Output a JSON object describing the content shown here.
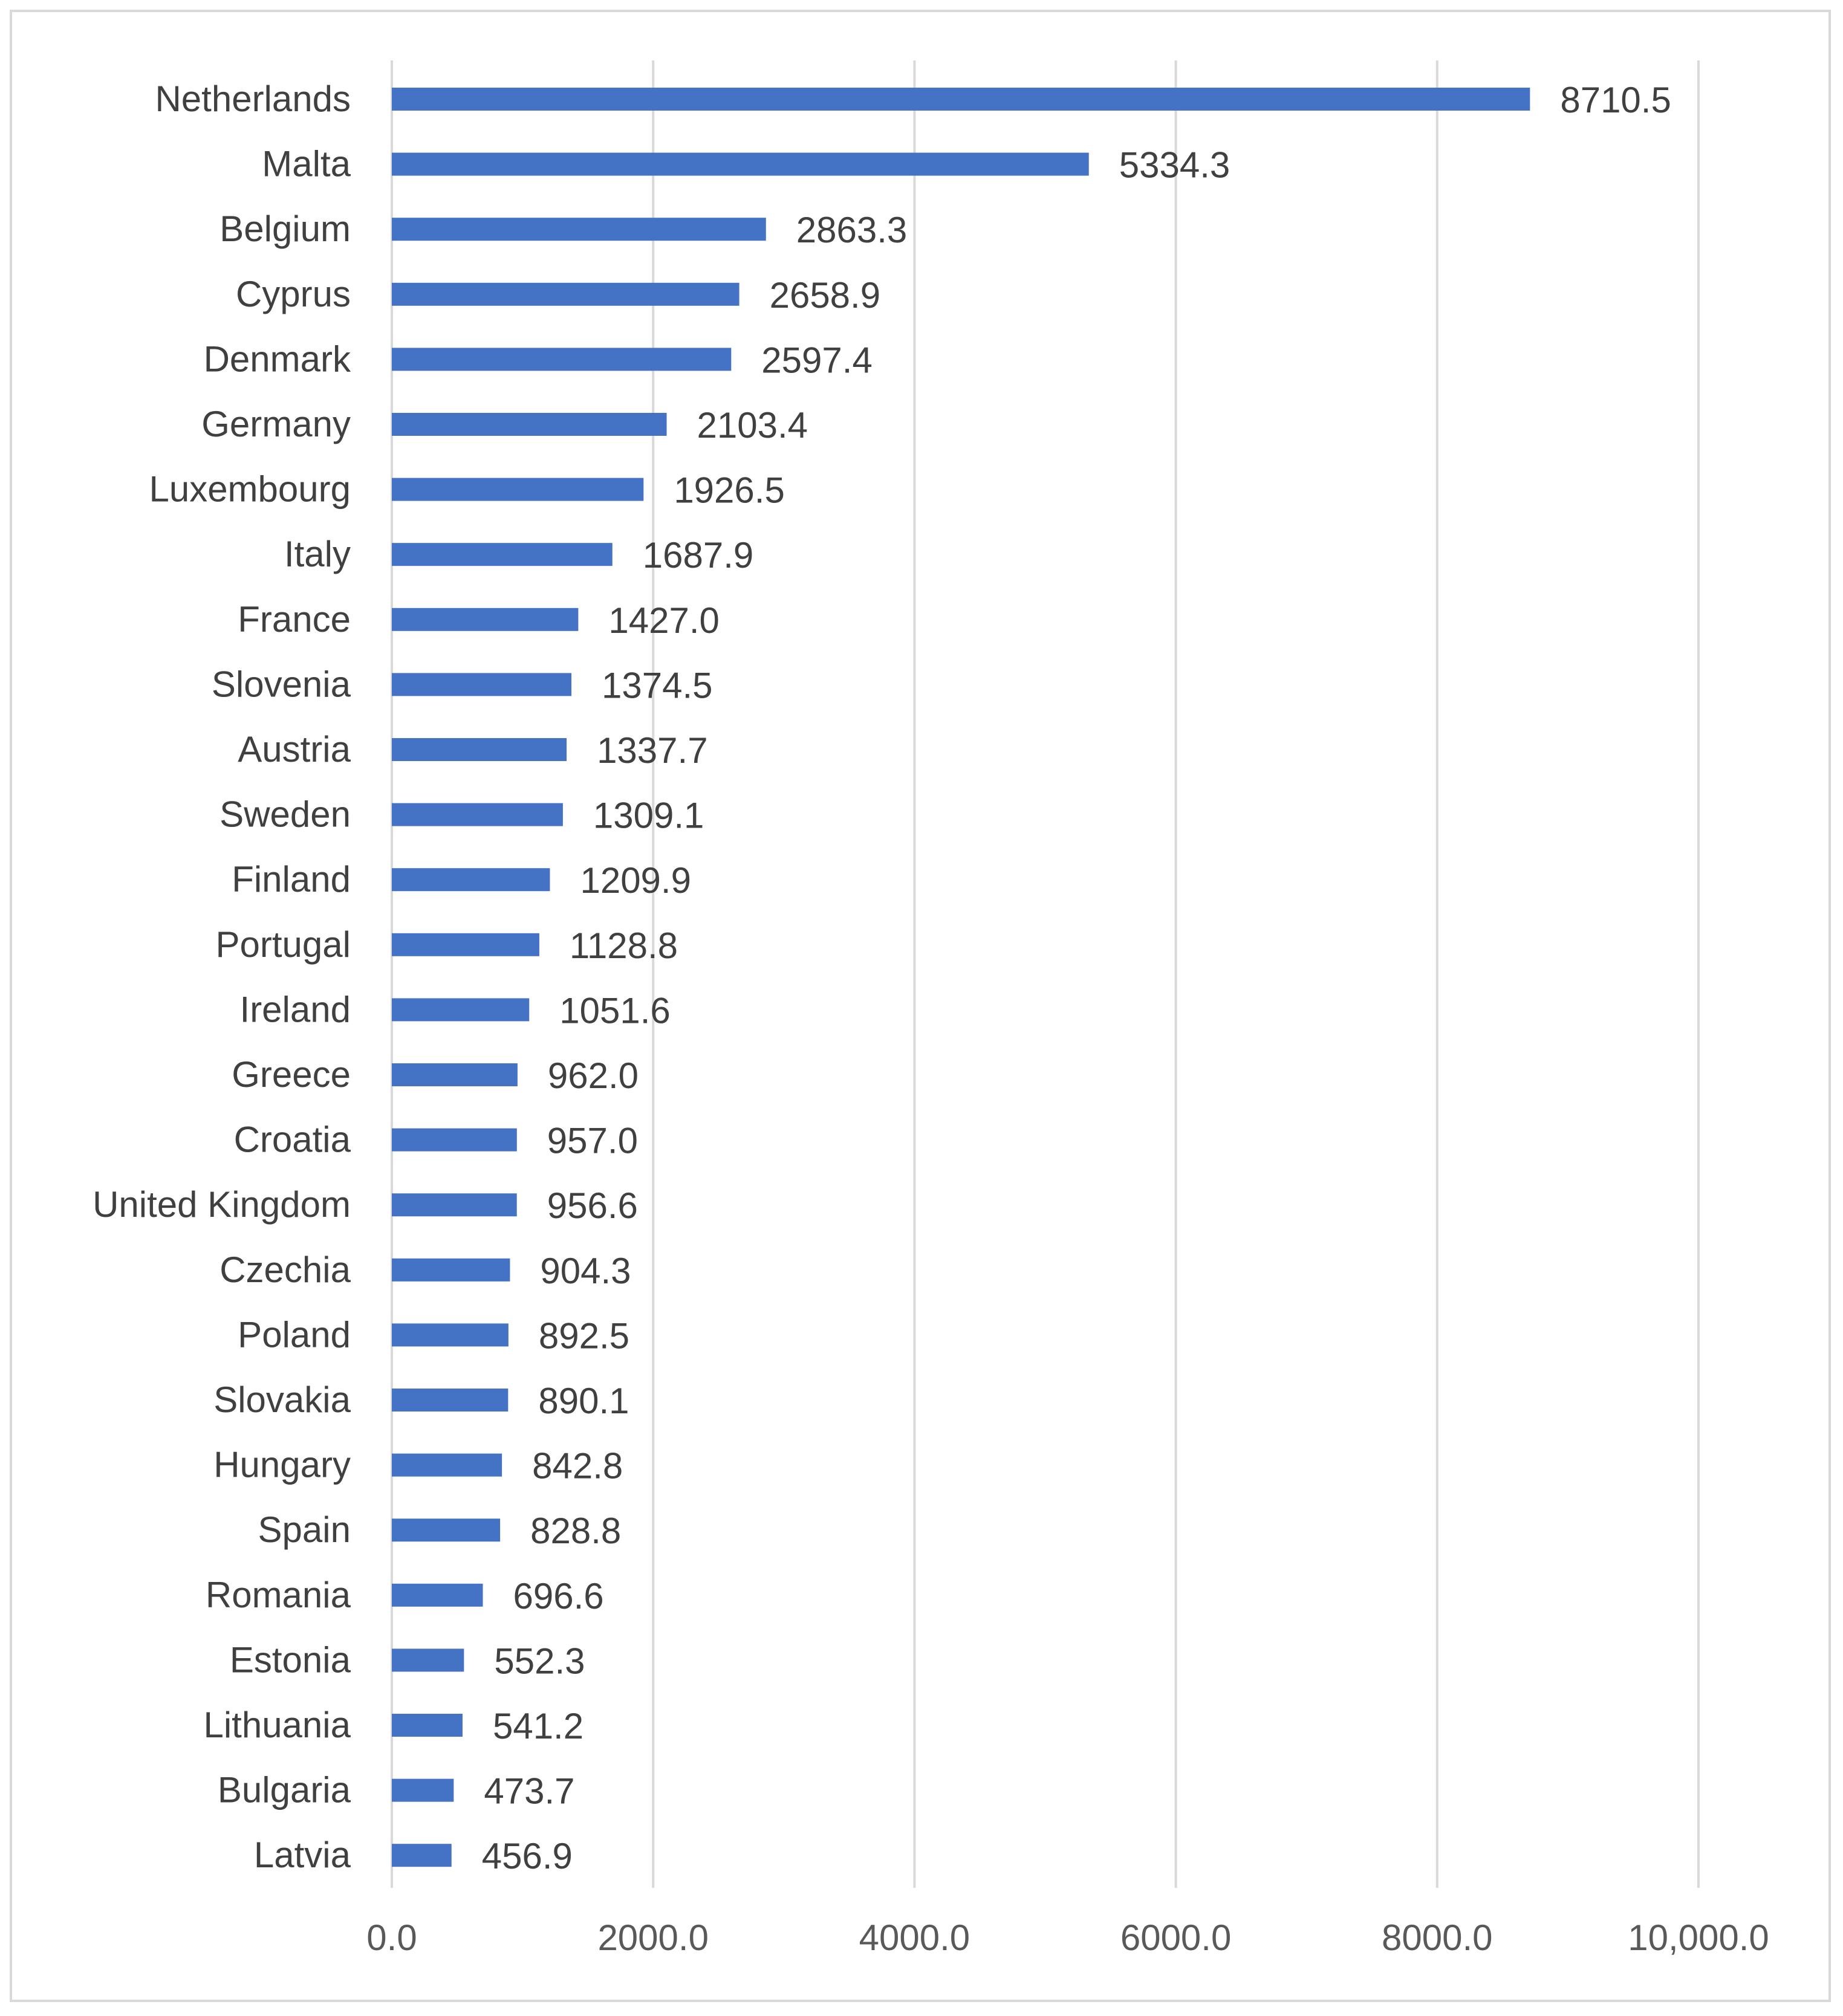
{
  "chart_data": {
    "type": "bar",
    "orientation": "horizontal",
    "title": "",
    "xlabel": "",
    "ylabel": "",
    "xlim": [
      0,
      10000
    ],
    "grid": true,
    "bar_color": "#4472C4",
    "categories": [
      "Netherlands",
      "Malta",
      "Belgium",
      "Cyprus",
      "Denmark",
      "Germany",
      "Luxembourg",
      "Italy",
      "France",
      "Slovenia",
      "Austria",
      "Sweden",
      "Finland",
      "Portugal",
      "Ireland",
      "Greece",
      "Croatia",
      "United Kingdom",
      "Czechia",
      "Poland",
      "Slovakia",
      "Hungary",
      "Spain",
      "Romania",
      "Estonia",
      "Lithuania",
      "Bulgaria",
      "Latvia"
    ],
    "values": [
      8710.5,
      5334.3,
      2863.3,
      2658.9,
      2597.4,
      2103.4,
      1926.5,
      1687.9,
      1427.0,
      1374.5,
      1337.7,
      1309.1,
      1209.9,
      1128.8,
      1051.6,
      962.0,
      957.0,
      956.6,
      904.3,
      892.5,
      890.1,
      842.8,
      828.8,
      696.6,
      552.3,
      541.2,
      473.7,
      456.9
    ],
    "value_labels": [
      "8710.5",
      "5334.3",
      "2863.3",
      "2658.9",
      "2597.4",
      "2103.4",
      "1926.5",
      "1687.9",
      "1427.0",
      "1374.5",
      "1337.7",
      "1309.1",
      "1209.9",
      "1128.8",
      "1051.6",
      "962.0",
      "957.0",
      "956.6",
      "904.3",
      "892.5",
      "890.1",
      "842.8",
      "828.8",
      "696.6",
      "552.3",
      "541.2",
      "473.7",
      "456.9"
    ],
    "ticks": [
      0,
      2000,
      4000,
      6000,
      8000,
      10000
    ],
    "tick_labels": [
      "0.0",
      "2000.0",
      "4000.0",
      "6000.0",
      "8000.0",
      "10,000.0"
    ]
  }
}
